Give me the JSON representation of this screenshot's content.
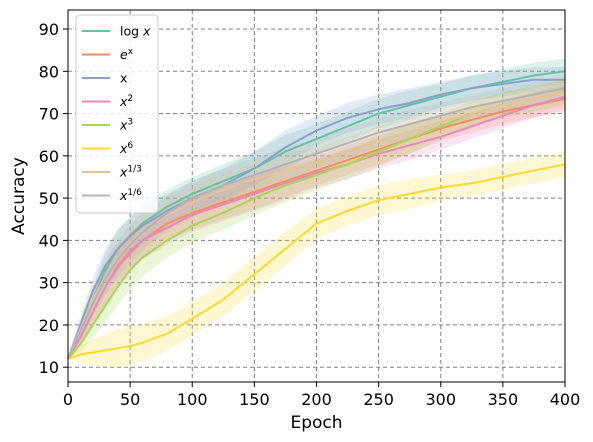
{
  "chart_data": {
    "type": "line",
    "xlabel": "Epoch",
    "ylabel": "Accuracy",
    "xlim": [
      0,
      400
    ],
    "ylim": [
      6.5,
      94.5
    ],
    "xticks": [
      0,
      50,
      100,
      150,
      200,
      250,
      300,
      350,
      400
    ],
    "yticks": [
      10,
      20,
      30,
      40,
      50,
      60,
      70,
      80,
      90
    ],
    "xtick_labels": [
      "0",
      "50",
      "100",
      "150",
      "200",
      "250",
      "300",
      "350",
      "400"
    ],
    "ytick_labels": [
      "10",
      "20",
      "30",
      "40",
      "50",
      "60",
      "70",
      "80",
      "90"
    ],
    "grid": true,
    "grid_style": "dashed",
    "legend_position": "top-left",
    "x": [
      0,
      10,
      20,
      30,
      40,
      50,
      60,
      80,
      100,
      125,
      150,
      175,
      200,
      225,
      250,
      275,
      300,
      325,
      350,
      375,
      400
    ],
    "series": [
      {
        "name": "log x",
        "label_parts": [
          "log",
          "x"
        ],
        "color": "#66c2a5",
        "values": [
          12,
          19,
          26,
          33,
          38,
          41,
          44,
          48,
          51,
          54,
          57,
          61,
          64,
          67,
          70,
          72,
          74,
          76,
          77.5,
          79,
          80
        ]
      },
      {
        "name": "e^x",
        "label_parts": [
          "e",
          "x"
        ],
        "color": "#fc8d62",
        "values": [
          12,
          17,
          23,
          29,
          34,
          37.5,
          40,
          44,
          46.5,
          49,
          51.5,
          54,
          56.5,
          59,
          61.5,
          64,
          66.5,
          68.5,
          70.5,
          72,
          73.5
        ]
      },
      {
        "name": "x",
        "label_parts": [
          "x"
        ],
        "color": "#8da0cb",
        "values": [
          12,
          20,
          28,
          34,
          38,
          41,
          43.5,
          47,
          50,
          53,
          57,
          62,
          66,
          69,
          71,
          72.5,
          74.5,
          76,
          77,
          78,
          78
        ]
      },
      {
        "name": "x^2",
        "label_parts": [
          "x",
          "2"
        ],
        "color": "#e78ac3",
        "values": [
          12,
          17,
          23,
          29,
          33.5,
          37,
          40,
          43,
          46,
          48.5,
          51,
          53.5,
          56,
          58,
          60.5,
          62.5,
          64.5,
          67,
          69.5,
          72,
          74
        ]
      },
      {
        "name": "x^3",
        "label_parts": [
          "x",
          "3"
        ],
        "color": "#a6d854",
        "values": [
          12,
          15.5,
          20,
          24.5,
          29,
          33,
          36,
          40,
          43.5,
          46.5,
          50,
          53,
          55.5,
          58,
          61,
          64,
          67,
          70,
          72,
          73.5,
          75
        ]
      },
      {
        "name": "x^6",
        "label_parts": [
          "x",
          "6"
        ],
        "color": "#ffd92f",
        "values": [
          12,
          13,
          13.5,
          14,
          14.5,
          15,
          15.8,
          18,
          21.5,
          26,
          32,
          38,
          44,
          47,
          49.5,
          51,
          52.5,
          53.5,
          55,
          56.5,
          58
        ]
      },
      {
        "name": "x^1/3",
        "label_parts": [
          "x",
          "1/3"
        ],
        "color": "#e5c494",
        "values": [
          12,
          19,
          26,
          31.5,
          36,
          39.5,
          42.5,
          46,
          49,
          52,
          54.5,
          56.5,
          58.5,
          61,
          63.5,
          65.5,
          68,
          70,
          72,
          73.5,
          75
        ]
      },
      {
        "name": "x^1/6",
        "label_parts": [
          "x",
          "1/6"
        ],
        "color": "#b3b3b3",
        "values": [
          12,
          18.5,
          25,
          31,
          35.5,
          39,
          42,
          46.5,
          50,
          53,
          55.5,
          58,
          60.5,
          63,
          65.5,
          67.5,
          69.5,
          71.5,
          73,
          74.5,
          76
        ]
      }
    ],
    "band_halfwidth": [
      0,
      2,
      3,
      4,
      4.5,
      4.5,
      4.5,
      4,
      4,
      4,
      4,
      4,
      3.5,
      3.5,
      3.5,
      3.5,
      3,
      3,
      3,
      3,
      3
    ]
  }
}
